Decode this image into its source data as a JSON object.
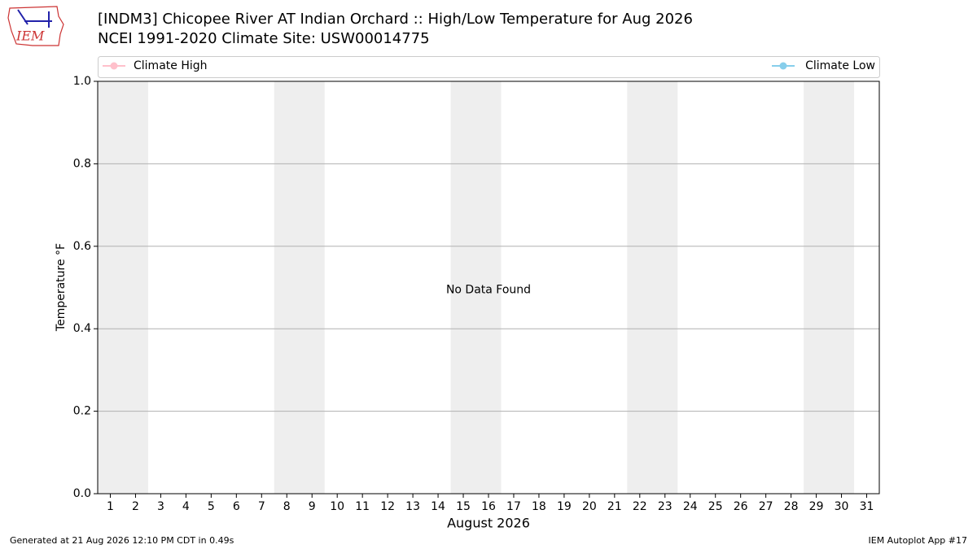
{
  "chart_data": {
    "type": "line",
    "title": "[INDM3] Chicopee River  AT Indian Orchard :: High/Low Temperature for Aug 2026",
    "subtitle": "NCEI 1991-2020 Climate Site: USW00014775",
    "y_label": "Temperature °F",
    "x_label": "August 2026",
    "annotation": "No Data Found",
    "series": [
      {
        "name": "Climate High",
        "color": "#ffc0cb"
      },
      {
        "name": "Climate Low",
        "color": "#87ceeb"
      }
    ],
    "xlim": [
      0.5,
      31.5
    ],
    "xticks": [
      1,
      2,
      3,
      4,
      5,
      6,
      7,
      8,
      9,
      10,
      11,
      12,
      13,
      14,
      15,
      16,
      17,
      18,
      19,
      20,
      21,
      22,
      23,
      24,
      25,
      26,
      27,
      28,
      29,
      30,
      31
    ],
    "ylim": [
      0,
      1
    ],
    "yticks": [
      {
        "value": 0,
        "label": "0.0"
      },
      0.2,
      0.4,
      0.6,
      0.8,
      {
        "value": 1,
        "label": "1.0"
      }
    ],
    "grid": true,
    "shaded_spans": [
      [
        0.5,
        2.5
      ],
      [
        7.5,
        9.5
      ],
      [
        14.5,
        16.5
      ],
      [
        21.5,
        23.5
      ],
      [
        28.5,
        30.5
      ]
    ],
    "shade_color": "#eeeeee"
  },
  "logo": "IEM",
  "footer": {
    "left": "Generated at 21 Aug 2026 12:10 PM CDT in 0.49s",
    "right": "IEM Autoplot App #17"
  }
}
